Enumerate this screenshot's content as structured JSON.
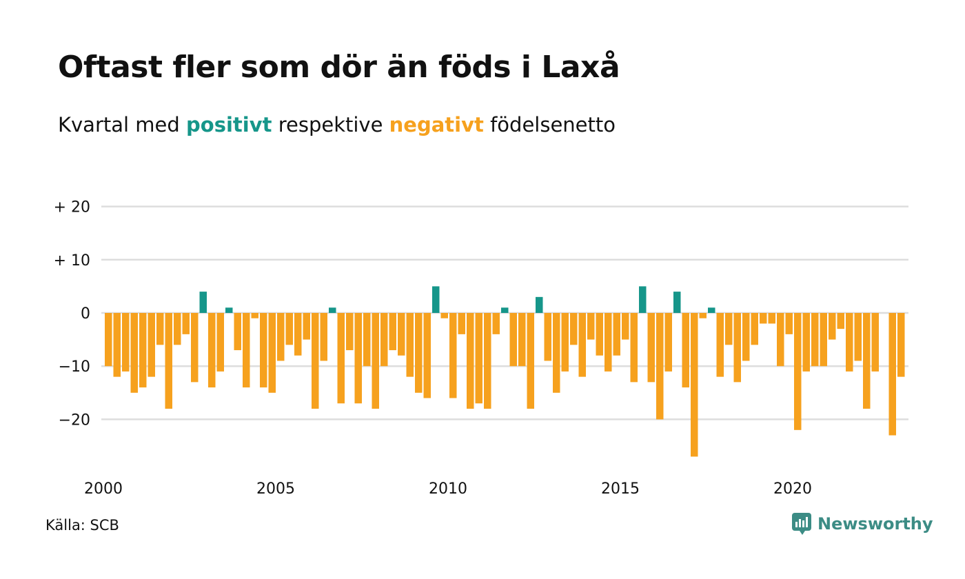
{
  "title": "Oftast fler som dör än föds i Laxå",
  "subtitle": {
    "prefix": "Kvartal med",
    "positive_word": "positivt",
    "middle": "respektive",
    "negative_word": "negativt",
    "suffix": "födelsenetto"
  },
  "source": "Källa: SCB",
  "brand": "Newsworthy",
  "colors": {
    "positive": "#16968a",
    "negative": "#f6a11e",
    "grid": "#dddddd",
    "brand": "#3c8c85"
  },
  "chart_data": {
    "type": "bar",
    "x_start": "2000 Q1",
    "frequency": "quarterly",
    "ylim": [
      -27,
      20
    ],
    "y_ticks": [
      {
        "value": 20,
        "label": "+ 20"
      },
      {
        "value": 10,
        "label": "+ 10"
      },
      {
        "value": 0,
        "label": "0"
      },
      {
        "value": -10,
        "label": "−10"
      },
      {
        "value": -20,
        "label": "−20"
      }
    ],
    "x_ticks": [
      "2000",
      "2005",
      "2010",
      "2015",
      "2020"
    ],
    "grid": true,
    "values": [
      -10,
      -12,
      -11,
      -15,
      -14,
      -12,
      -6,
      -18,
      -6,
      -4,
      -13,
      4,
      -14,
      -11,
      1,
      -7,
      -14,
      -1,
      -14,
      -15,
      -9,
      -6,
      -8,
      -5,
      -18,
      -9,
      1,
      -17,
      -7,
      -17,
      -10,
      -18,
      -10,
      -7,
      -8,
      -12,
      -15,
      -16,
      5,
      -1,
      -16,
      -4,
      -18,
      -17,
      -18,
      -4,
      1,
      -10,
      -10,
      -18,
      3,
      -9,
      -15,
      -11,
      -6,
      -12,
      -5,
      -8,
      -11,
      -8,
      -5,
      -13,
      5,
      -13,
      -20,
      -11,
      4,
      -14,
      -27,
      -1,
      1,
      -12,
      -6,
      -13,
      -9,
      -6,
      -2,
      -2,
      -10,
      -4,
      -22,
      -11,
      -10,
      -10,
      -5,
      -3,
      -11,
      -9,
      -18,
      -11,
      0,
      -23,
      -12
    ]
  }
}
